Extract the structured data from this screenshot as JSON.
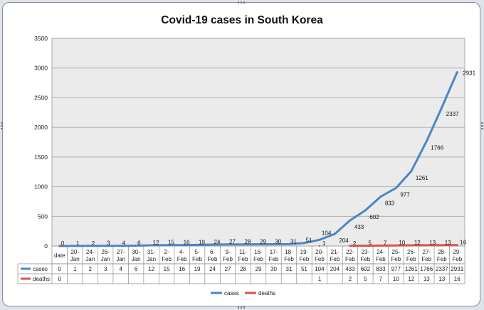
{
  "chart_data": {
    "type": "line",
    "title": "Covid-19 cases in South Korea",
    "ylim": [
      0,
      3500
    ],
    "yticks": [
      0,
      500,
      1000,
      1500,
      2000,
      2500,
      3000,
      3500
    ],
    "grid": true,
    "legend_position": "bottom",
    "categories": [
      "date",
      "20-Jan",
      "24-Jan",
      "26-Jan",
      "27-Jan",
      "30-Jan",
      "31-Jan",
      "2-Feb",
      "4-Feb",
      "5-Feb",
      "6-Feb",
      "9-Feb",
      "11-Feb",
      "16-Feb",
      "17-Feb",
      "18-Feb",
      "19-Feb",
      "20-Feb",
      "21-Feb",
      "22-Feb",
      "23-Feb",
      "24-Feb",
      "25-Feb",
      "26-Feb",
      "27-Feb",
      "28-Feb",
      "29-Feb"
    ],
    "series": [
      {
        "name": "cases",
        "color": "#4a86c6",
        "values": [
          0,
          1,
          2,
          3,
          4,
          6,
          12,
          15,
          16,
          19,
          24,
          27,
          28,
          29,
          30,
          31,
          51,
          104,
          204,
          433,
          602,
          833,
          977,
          1261,
          1766,
          2337,
          2931
        ],
        "point_labels": [
          "0",
          "1",
          "2",
          "3",
          "4",
          "6",
          "12",
          "15",
          "16",
          "19",
          "24",
          "27",
          "28",
          "29",
          "30",
          "31",
          "51",
          "104",
          "204",
          "433",
          "602",
          "833",
          "977",
          "1261",
          "1766",
          "2337",
          "2931"
        ],
        "table_values": [
          "0",
          "1",
          "2",
          "3",
          "4",
          "6",
          "12",
          "15",
          "16",
          "19",
          "24",
          "27",
          "28",
          "29",
          "30",
          "31",
          "51",
          "104",
          "204",
          "433",
          "602",
          "833",
          "977",
          "1261",
          "1766",
          "2337",
          "2931"
        ]
      },
      {
        "name": "deaths",
        "color": "#d9534f",
        "values": [
          0,
          null,
          null,
          null,
          null,
          null,
          null,
          null,
          null,
          null,
          null,
          null,
          null,
          null,
          null,
          null,
          null,
          1,
          null,
          2,
          5,
          7,
          10,
          12,
          13,
          13,
          16
        ],
        "point_labels": [
          "",
          "",
          "",
          "",
          "",
          "",
          "",
          "",
          "",
          "",
          "",
          "",
          "",
          "",
          "",
          "",
          "",
          "1",
          "",
          "2",
          "5",
          "7",
          "10",
          "12",
          "13",
          "13",
          "16"
        ],
        "table_values": [
          "0",
          "",
          "",
          "",
          "",
          "",
          "",
          "",
          "",
          "",
          "",
          "",
          "",
          "",
          "",
          "",
          "",
          "1",
          "",
          "2",
          "5",
          "7",
          "10",
          "12",
          "13",
          "13",
          "16"
        ]
      }
    ]
  }
}
